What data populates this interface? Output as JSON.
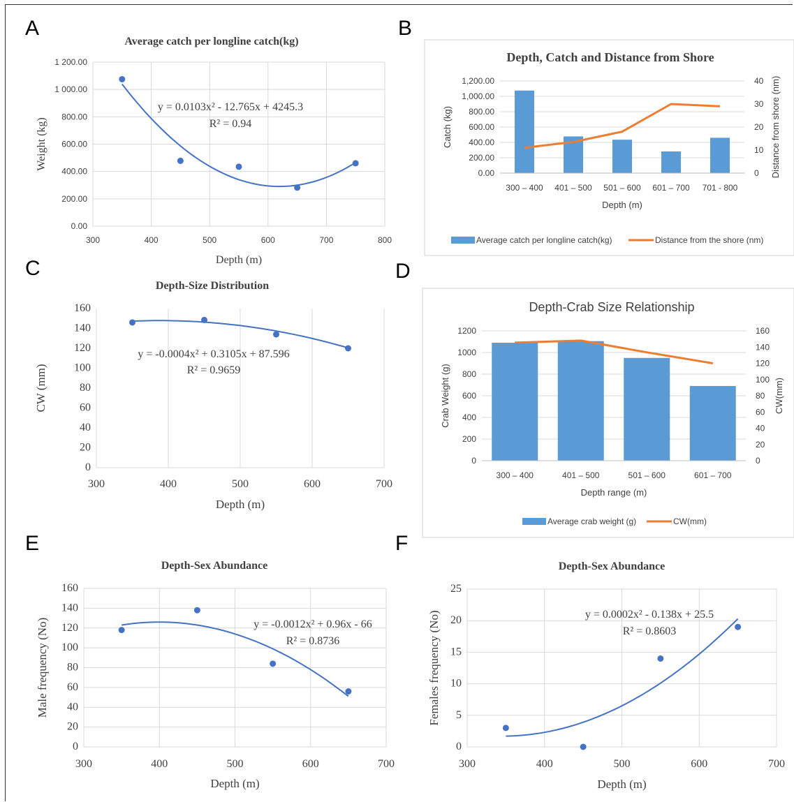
{
  "panel_letters": [
    "A",
    "B",
    "C",
    "D",
    "E",
    "F"
  ],
  "colors": {
    "blue": "#4472c4",
    "bar": "#5b9bd5",
    "orange": "#ed7d31",
    "grid": "#d9d9d9"
  },
  "chart_data": [
    {
      "id": "A",
      "type": "scatter",
      "title": "Average catch per longline catch(kg)",
      "xlabel": "Depth (m)",
      "ylabel": "Weight (kg)",
      "xlim": [
        300,
        800
      ],
      "ylim": [
        0,
        1200
      ],
      "xticks": [
        "300",
        "400",
        "500",
        "600",
        "700",
        "800"
      ],
      "yticks": [
        "0.00",
        "200.00",
        "400.00",
        "600.00",
        "800.00",
        "1 000.00",
        "1 200.00"
      ],
      "x": [
        350,
        450,
        550,
        650,
        750
      ],
      "y": [
        1075,
        478,
        435,
        282,
        460
      ],
      "trend": {
        "a": 0.0103,
        "b": -12.765,
        "c": 4245.3,
        "x_range": [
          350,
          750
        ]
      },
      "equation": "y = 0.0103x² - 12.765x + 4245.3",
      "r2": "R² = 0.94",
      "grid": "vertical and horizontal"
    },
    {
      "id": "B",
      "type": "bar",
      "title": "Depth, Catch and Distance from Shore",
      "xlabel": "Depth (m)",
      "ylabel": "Catch (kg)",
      "y2label": "Distance from shore (nm)",
      "categories": [
        "300 – 400",
        "401 – 500",
        "501 – 600",
        "601 – 700",
        "701 - 800"
      ],
      "ylim": [
        0,
        1200
      ],
      "y2lim": [
        0,
        40
      ],
      "yticks": [
        "0.00",
        "200.00",
        "400.00",
        "600.00",
        "800.00",
        "1,000.00",
        "1,200.00"
      ],
      "y2ticks": [
        "0",
        "10",
        "20",
        "30",
        "40"
      ],
      "series": [
        {
          "name": "Average catch per longline catch(kg)",
          "kind": "bar",
          "values": [
            1075,
            478,
            435,
            282,
            460
          ]
        },
        {
          "name": "Distance from the shore (nm)",
          "kind": "line",
          "axis": "secondary",
          "values": [
            11,
            13.5,
            18,
            30,
            29
          ]
        }
      ],
      "legend": "bottom"
    },
    {
      "id": "C",
      "type": "scatter",
      "title": "Depth-Size Distribution",
      "xlabel": "Depth (m)",
      "ylabel": "CW (mm)",
      "xlim": [
        300,
        700
      ],
      "ylim": [
        0,
        160
      ],
      "xticks": [
        "300",
        "400",
        "500",
        "600",
        "700"
      ],
      "yticks": [
        "0",
        "20",
        "40",
        "60",
        "80",
        "100",
        "120",
        "140",
        "160"
      ],
      "x": [
        350,
        450,
        550,
        650
      ],
      "y": [
        146,
        148.5,
        134,
        120
      ],
      "trend": {
        "a": -0.0004,
        "b": 0.3105,
        "c": 87.596,
        "x_range": [
          350,
          650
        ]
      },
      "equation": "y = -0.0004x² + 0.3105x + 87.596",
      "r2": "R² = 0.9659",
      "grid": "vertical"
    },
    {
      "id": "D",
      "type": "bar",
      "title": "Depth-Crab Size Relationship",
      "xlabel": "Depth range (m)",
      "ylabel": "Crab Weight (g)",
      "y2label": "CW(mm)",
      "categories": [
        "300 – 400",
        "401 – 500",
        "501 – 600",
        "601 – 700"
      ],
      "ylim": [
        0,
        1200
      ],
      "y2lim": [
        0,
        160
      ],
      "yticks": [
        "0",
        "200",
        "400",
        "600",
        "800",
        "1000",
        "1200"
      ],
      "y2ticks": [
        "0",
        "20",
        "40",
        "60",
        "80",
        "100",
        "120",
        "140",
        "160"
      ],
      "series": [
        {
          "name": "Average crab weight (g)",
          "kind": "bar",
          "values": [
            1090,
            1105,
            950,
            690
          ]
        },
        {
          "name": "CW(mm)",
          "kind": "line",
          "axis": "secondary",
          "values": [
            145.5,
            148,
            133.5,
            120
          ]
        }
      ],
      "legend": "bottom"
    },
    {
      "id": "E",
      "type": "scatter",
      "title": "Depth-Sex Abundance",
      "xlabel": "Depth (m)",
      "ylabel": "Male frequency (No)",
      "xlim": [
        300,
        700
      ],
      "ylim": [
        0,
        160
      ],
      "xticks": [
        "300",
        "400",
        "500",
        "600",
        "700"
      ],
      "yticks": [
        "0",
        "20",
        "40",
        "60",
        "80",
        "100",
        "120",
        "140",
        "160"
      ],
      "x": [
        350,
        450,
        550,
        650
      ],
      "y": [
        118,
        138,
        84,
        56
      ],
      "trend": {
        "a": -0.0012,
        "b": 0.96,
        "c": -66,
        "x_range": [
          350,
          650
        ]
      },
      "equation": "y = -0.0012x² + 0.96x - 66",
      "r2": "R² = 0.8736",
      "grid": "vertical and horizontal"
    },
    {
      "id": "F",
      "type": "scatter",
      "title": "Depth-Sex Abundance",
      "xlabel": "Depth (m)",
      "ylabel": "Females frequency (No)",
      "xlim": [
        300,
        700
      ],
      "ylim": [
        0,
        25
      ],
      "xticks": [
        "300",
        "400",
        "500",
        "600",
        "700"
      ],
      "yticks": [
        "0",
        "5",
        "10",
        "15",
        "20",
        "25"
      ],
      "x": [
        350,
        450,
        550,
        650
      ],
      "y": [
        3,
        0,
        14,
        19
      ],
      "trend": {
        "a": 0.0002,
        "b": -0.138,
        "c": 25.5,
        "x_range": [
          350,
          650
        ]
      },
      "equation": "y = 0.0002x² - 0.138x + 25.5",
      "r2": "R² = 0.8603",
      "grid": "vertical and horizontal"
    }
  ]
}
